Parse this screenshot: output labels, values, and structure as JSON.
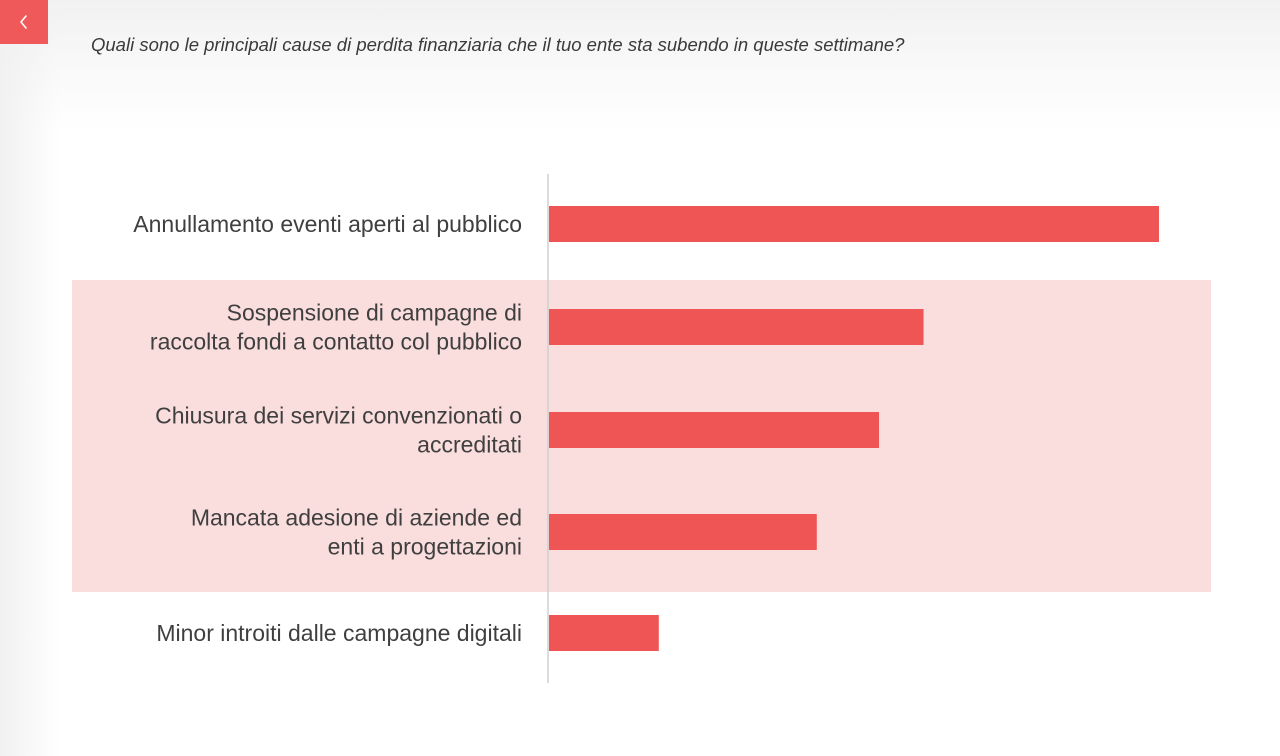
{
  "header": {
    "back_icon": "chevron-left-icon",
    "question": "Quali sono le principali cause di perdita finanziaria che il tuo ente sta subendo in queste settimane?"
  },
  "colors": {
    "accent": "#f0595a",
    "bar": "#f05555",
    "highlight_band": "#fadddd",
    "axis": "#d0d0d0",
    "text": "#3f3f3f"
  },
  "chart_data": {
    "type": "bar",
    "orientation": "horizontal",
    "title": "",
    "xlabel": "",
    "ylabel": "",
    "categories": [
      [
        "Annullamento eventi aperti al pubblico"
      ],
      [
        "Sospensione di campagne di",
        "raccolta fondi a contatto col pubblico"
      ],
      [
        "Chiusura dei servizi convenzionati o",
        "accreditati"
      ],
      [
        "Mancata adesione di aziende ed",
        "enti a progettazioni"
      ],
      [
        "Minor introiti dalle campagne digitali"
      ]
    ],
    "values": [
      100,
      61.4,
      54.1,
      43.9,
      18.0
    ],
    "xlim": [
      0,
      100
    ],
    "value_labels_shown": false,
    "highlighted_categories": [
      1,
      2,
      3
    ],
    "grid": false
  }
}
